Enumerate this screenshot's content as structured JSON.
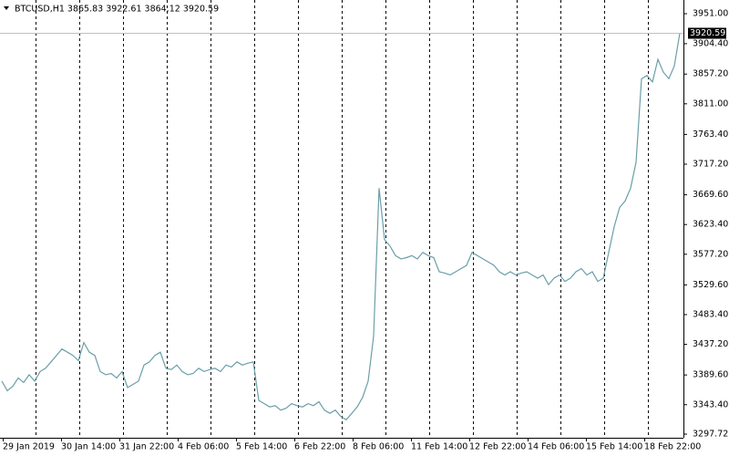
{
  "chart_data": {
    "type": "line",
    "title": "BTCUSD,H1  3865.83 3922.61 3864.12 3920.59",
    "time_labels": [
      "29 Jan 2019",
      "30 Jan 14:00",
      "31 Jan 22:00",
      "4 Feb 06:00",
      "5 Feb 14:00",
      "6 Feb 22:00",
      "8 Feb 06:00",
      "11 Feb 14:00",
      "12 Feb 22:00",
      "14 Feb 06:00",
      "15 Feb 14:00",
      "18 Feb 22:00"
    ],
    "series": [
      {
        "name": "BTCUSD",
        "color": "#6a9fa8",
        "values": [
          3380,
          3365,
          3372,
          3385,
          3378,
          3390,
          3380,
          3395,
          3400,
          3410,
          3420,
          3430,
          3425,
          3420,
          3412,
          3440,
          3425,
          3420,
          3395,
          3390,
          3392,
          3385,
          3395,
          3370,
          3375,
          3380,
          3405,
          3410,
          3420,
          3425,
          3400,
          3398,
          3405,
          3395,
          3390,
          3392,
          3400,
          3395,
          3398,
          3400,
          3395,
          3405,
          3402,
          3410,
          3405,
          3408,
          3410,
          3350,
          3345,
          3340,
          3342,
          3335,
          3338,
          3345,
          3342,
          3340,
          3345,
          3342,
          3348,
          3335,
          3330,
          3335,
          3325,
          3320,
          3330,
          3340,
          3355,
          3380,
          3450,
          3680,
          3600,
          3590,
          3575,
          3570,
          3572,
          3575,
          3570,
          3580,
          3575,
          3572,
          3550,
          3548,
          3545,
          3550,
          3555,
          3560,
          3580,
          3575,
          3570,
          3565,
          3560,
          3550,
          3545,
          3550,
          3545,
          3548,
          3550,
          3545,
          3540,
          3545,
          3530,
          3540,
          3545,
          3535,
          3540,
          3550,
          3555,
          3545,
          3550,
          3535,
          3540,
          3580,
          3620,
          3650,
          3660,
          3680,
          3720,
          3850,
          3855,
          3845,
          3880,
          3860,
          3850,
          3870,
          3920.59
        ]
      }
    ],
    "last_price": 3920.59,
    "ylim": [
      3292.05,
      3972.3
    ],
    "yticks": [
      {
        "value": 3951.0,
        "label": "3951.00"
      },
      {
        "value": 3904.4,
        "label": "3904.40"
      },
      {
        "value": 3857.2,
        "label": "3857.20"
      },
      {
        "value": 3811.0,
        "label": "3811.00"
      },
      {
        "value": 3763.4,
        "label": "3763.40"
      },
      {
        "value": 3717.2,
        "label": "3717.20"
      },
      {
        "value": 3669.6,
        "label": "3669.60"
      },
      {
        "value": 3623.4,
        "label": "3623.40"
      },
      {
        "value": 3577.2,
        "label": "3577.20"
      },
      {
        "value": 3529.6,
        "label": "3529.60"
      },
      {
        "value": 3483.4,
        "label": "3483.40"
      },
      {
        "value": 3437.2,
        "label": "3437.20"
      },
      {
        "value": 3389.6,
        "label": "3389.60"
      },
      {
        "value": 3343.4,
        "label": "3343.40"
      },
      3297.72
    ]
  }
}
